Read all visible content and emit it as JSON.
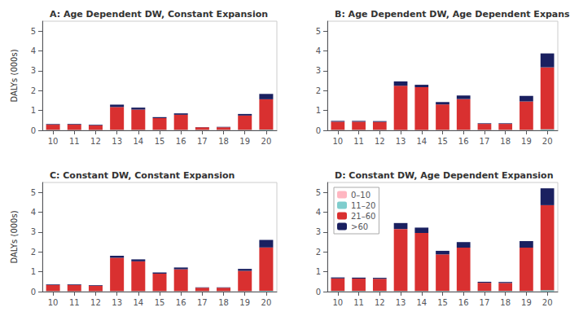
{
  "chart_data": [
    {
      "type": "bar",
      "title": "A: Age Dependent DW, Constant Expansion",
      "ylabel": "DALYs (000s)",
      "categories": [
        10,
        11,
        12,
        13,
        14,
        15,
        16,
        17,
        18,
        19,
        20
      ],
      "series": [
        {
          "name": "0–10",
          "color": "#ffb6c1",
          "values": [
            0.005,
            0.005,
            0.005,
            0.005,
            0.005,
            0.005,
            0.005,
            0.005,
            0.005,
            0.005,
            0.005
          ]
        },
        {
          "name": "11–20",
          "color": "#7fcdcd",
          "values": [
            0.02,
            0.02,
            0.02,
            0.02,
            0.02,
            0.02,
            0.02,
            0.02,
            0.02,
            0.02,
            0.03
          ]
        },
        {
          "name": "21–60",
          "color": "#d93030",
          "values": [
            0.26,
            0.26,
            0.22,
            1.15,
            1.02,
            0.59,
            0.76,
            0.13,
            0.13,
            0.72,
            1.53
          ]
        },
        {
          "name": ">60",
          "color": "#1a2060",
          "values": [
            0.03,
            0.03,
            0.03,
            0.12,
            0.1,
            0.05,
            0.07,
            0.01,
            0.02,
            0.08,
            0.27
          ]
        }
      ],
      "ylim": [
        0,
        5.5
      ],
      "yticks": [
        0,
        1,
        2,
        3,
        4,
        5
      ],
      "stacked": true,
      "grid": false
    },
    {
      "type": "bar",
      "title": "B: Age Dependent DW, Age Dependent Expansion",
      "categories": [
        10,
        11,
        12,
        13,
        14,
        15,
        16,
        17,
        18,
        19,
        20
      ],
      "series": [
        {
          "name": "0–10",
          "color": "#ffb6c1",
          "values": [
            0.005,
            0.005,
            0.005,
            0.005,
            0.005,
            0.005,
            0.005,
            0.005,
            0.005,
            0.005,
            0.005
          ]
        },
        {
          "name": "11–20",
          "color": "#7fcdcd",
          "values": [
            0.02,
            0.02,
            0.02,
            0.02,
            0.02,
            0.02,
            0.02,
            0.02,
            0.02,
            0.02,
            0.05
          ]
        },
        {
          "name": "21–60",
          "color": "#d93030",
          "values": [
            0.41,
            0.41,
            0.4,
            2.22,
            2.15,
            1.28,
            1.55,
            0.3,
            0.3,
            1.43,
            3.12
          ]
        },
        {
          "name": ">60",
          "color": "#1a2060",
          "values": [
            0.04,
            0.04,
            0.04,
            0.22,
            0.12,
            0.12,
            0.18,
            0.03,
            0.03,
            0.28,
            0.7
          ]
        }
      ],
      "ylim": [
        0,
        5.5
      ],
      "yticks": [
        0,
        1,
        2,
        3,
        4,
        5
      ],
      "stacked": true,
      "grid": false
    },
    {
      "type": "bar",
      "title": "C: Constant DW, Constant Expansion",
      "ylabel": "DALYs (000s)",
      "categories": [
        10,
        11,
        12,
        13,
        14,
        15,
        16,
        17,
        18,
        19,
        20
      ],
      "series": [
        {
          "name": "0–10",
          "color": "#ffb6c1",
          "values": [
            0.005,
            0.005,
            0.005,
            0.005,
            0.005,
            0.005,
            0.005,
            0.005,
            0.005,
            0.005,
            0.005
          ]
        },
        {
          "name": "11–20",
          "color": "#7fcdcd",
          "values": [
            0.02,
            0.02,
            0.02,
            0.02,
            0.02,
            0.02,
            0.02,
            0.02,
            0.02,
            0.02,
            0.04
          ]
        },
        {
          "name": "21–60",
          "color": "#d93030",
          "values": [
            0.31,
            0.31,
            0.27,
            1.68,
            1.5,
            0.88,
            1.1,
            0.17,
            0.17,
            1.02,
            2.18
          ]
        },
        {
          "name": ">60",
          "color": "#1a2060",
          "values": [
            0.03,
            0.03,
            0.03,
            0.1,
            0.1,
            0.06,
            0.09,
            0.02,
            0.02,
            0.1,
            0.38
          ]
        }
      ],
      "ylim": [
        0,
        5.5
      ],
      "yticks": [
        0,
        1,
        2,
        3,
        4,
        5
      ],
      "stacked": true,
      "grid": false
    },
    {
      "type": "bar",
      "title": "D: Constant DW, Age Dependent Expansion",
      "categories": [
        10,
        11,
        12,
        13,
        14,
        15,
        16,
        17,
        18,
        19,
        20
      ],
      "series": [
        {
          "name": "0–10",
          "color": "#ffb6c1",
          "values": [
            0.005,
            0.005,
            0.005,
            0.005,
            0.005,
            0.005,
            0.005,
            0.005,
            0.005,
            0.005,
            0.005
          ]
        },
        {
          "name": "11–20",
          "color": "#7fcdcd",
          "values": [
            0.03,
            0.03,
            0.03,
            0.03,
            0.03,
            0.03,
            0.03,
            0.03,
            0.03,
            0.03,
            0.07
          ]
        },
        {
          "name": "21–60",
          "color": "#d93030",
          "values": [
            0.63,
            0.62,
            0.61,
            3.12,
            2.92,
            1.84,
            2.18,
            0.41,
            0.4,
            2.18,
            4.28
          ]
        },
        {
          "name": ">60",
          "color": "#1a2060",
          "values": [
            0.05,
            0.05,
            0.05,
            0.3,
            0.27,
            0.18,
            0.28,
            0.05,
            0.05,
            0.33,
            0.85
          ]
        }
      ],
      "ylim": [
        0,
        5.5
      ],
      "yticks": [
        0,
        1,
        2,
        3,
        4,
        5
      ],
      "stacked": true,
      "grid": false,
      "legend": "upper left"
    }
  ]
}
